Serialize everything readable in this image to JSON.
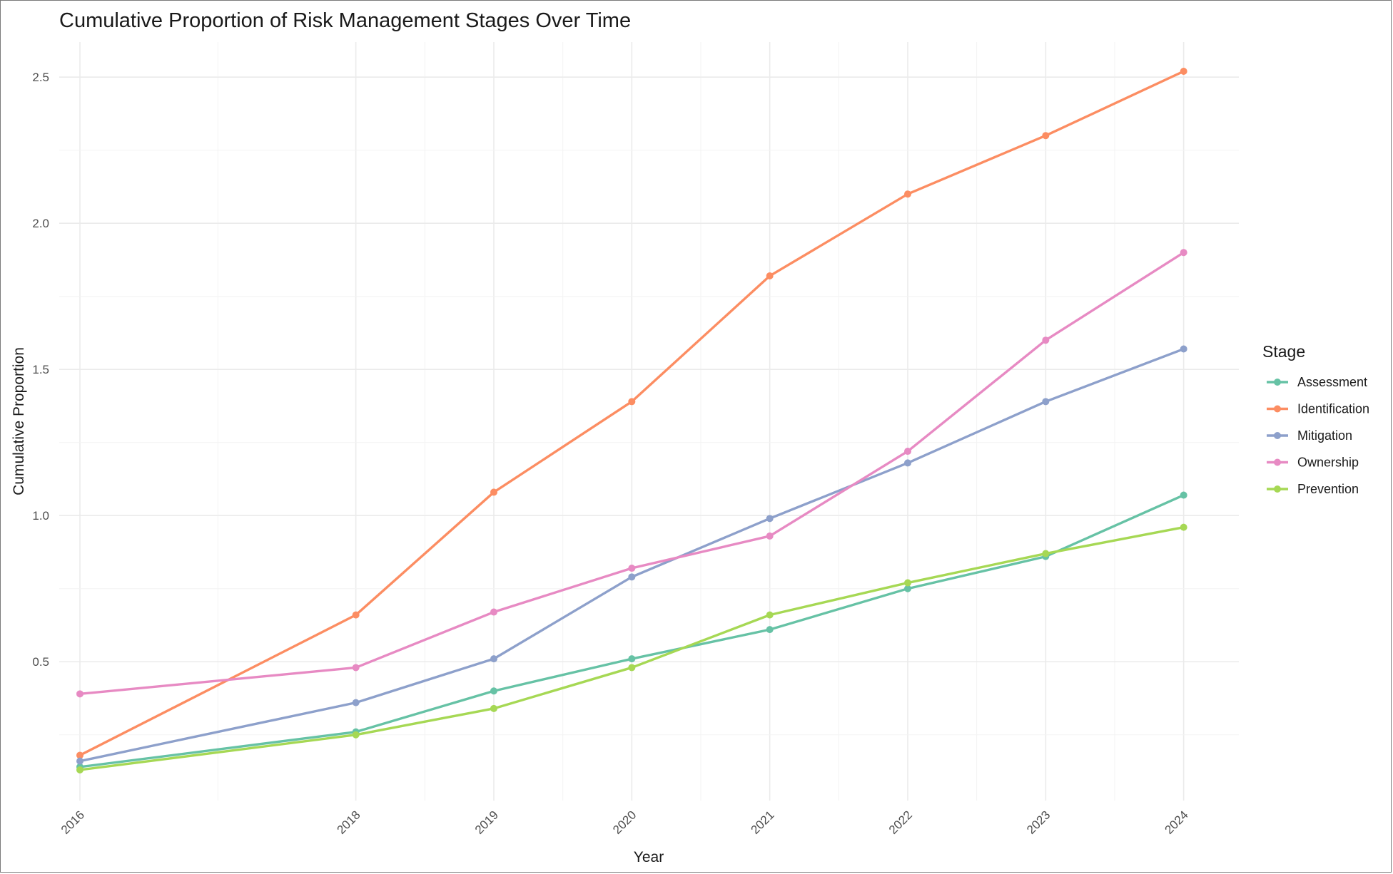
{
  "chart_data": {
    "type": "line",
    "title": "Cumulative Proportion of Risk Management Stages Over Time",
    "xlabel": "Year",
    "ylabel": "Cumulative Proportion",
    "x": [
      "2016",
      "2018",
      "2019",
      "2020",
      "2021",
      "2022",
      "2023",
      "2024"
    ],
    "x_values": [
      2016,
      2018,
      2019,
      2020,
      2021,
      2022,
      2023,
      2024
    ],
    "xlim": [
      2015.85,
      2024.4
    ],
    "ylim": [
      0.025,
      2.62
    ],
    "y_ticks": [
      0.5,
      1.0,
      1.5,
      2.0,
      2.5
    ],
    "y_tick_labels": [
      "0.5",
      "1.0",
      "1.5",
      "2.0",
      "2.5"
    ],
    "y_minor_ticks": [
      0.25,
      0.75,
      1.25,
      1.75,
      2.25
    ],
    "grid": true,
    "legend": {
      "title": "Stage",
      "placement": "right"
    },
    "series": [
      {
        "name": "Assessment",
        "color": "#66c2a5",
        "values": [
          0.14,
          0.26,
          0.4,
          0.51,
          0.61,
          0.75,
          0.86,
          1.07
        ]
      },
      {
        "name": "Identification",
        "color": "#fc8d62",
        "values": [
          0.18,
          0.66,
          1.08,
          1.39,
          1.82,
          2.1,
          2.3,
          2.52
        ]
      },
      {
        "name": "Mitigation",
        "color": "#8da0cb",
        "values": [
          0.16,
          0.36,
          0.51,
          0.79,
          0.99,
          1.18,
          1.39,
          1.57
        ]
      },
      {
        "name": "Ownership",
        "color": "#e78ac3",
        "values": [
          0.39,
          0.48,
          0.67,
          0.82,
          0.93,
          1.22,
          1.6,
          1.9
        ]
      },
      {
        "name": "Prevention",
        "color": "#a6d854",
        "values": [
          0.13,
          0.25,
          0.34,
          0.48,
          0.66,
          0.77,
          0.87,
          0.96
        ]
      }
    ]
  }
}
